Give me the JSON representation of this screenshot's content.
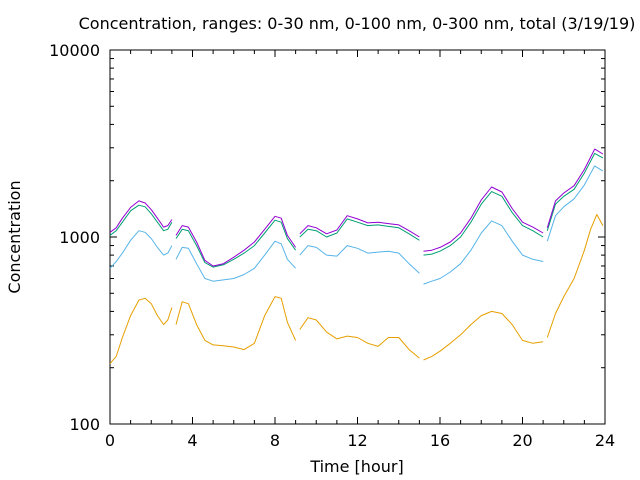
{
  "chart_data": {
    "type": "line",
    "title": "Concentration, ranges: 0-30 nm, 0-100 nm, 0-300 nm, total (3/19/19)",
    "xlabel": "Time [hour]",
    "ylabel": "Concentration",
    "xlim": [
      0,
      24
    ],
    "ylim": [
      100,
      10000
    ],
    "yscale": "log",
    "grid": false,
    "legend": "none",
    "x_ticks": [
      "0",
      "4",
      "8",
      "12",
      "16",
      "20",
      "24"
    ],
    "y_ticks": [
      "100",
      "1000",
      "10000"
    ],
    "series": [
      {
        "color": "#e69f00",
        "segments": [
          [
            [
              0,
              210
            ],
            [
              0.3,
              230
            ],
            [
              0.6,
              290
            ],
            [
              1.0,
              380
            ],
            [
              1.4,
              460
            ],
            [
              1.7,
              470
            ],
            [
              2.0,
              440
            ],
            [
              2.3,
              380
            ],
            [
              2.6,
              340
            ],
            [
              2.8,
              360
            ],
            [
              3.0,
              420
            ]
          ],
          [
            [
              3.2,
              340
            ],
            [
              3.5,
              450
            ],
            [
              3.8,
              440
            ],
            [
              4.2,
              340
            ],
            [
              4.6,
              280
            ],
            [
              5.0,
              265
            ],
            [
              5.5,
              262
            ],
            [
              6.0,
              258
            ],
            [
              6.5,
              250
            ],
            [
              7.0,
              270
            ],
            [
              7.5,
              380
            ],
            [
              8.0,
              480
            ],
            [
              8.3,
              470
            ],
            [
              8.6,
              350
            ],
            [
              9.0,
              280
            ]
          ],
          [
            [
              9.2,
              320
            ],
            [
              9.6,
              370
            ],
            [
              10.0,
              360
            ],
            [
              10.5,
              310
            ],
            [
              11.0,
              285
            ],
            [
              11.5,
              295
            ],
            [
              12.0,
              290
            ],
            [
              12.5,
              270
            ],
            [
              13.0,
              260
            ],
            [
              13.5,
              290
            ],
            [
              14.0,
              290
            ],
            [
              14.5,
              250
            ],
            [
              15.0,
              225
            ]
          ],
          [
            [
              15.2,
              220
            ],
            [
              15.6,
              230
            ],
            [
              16.0,
              245
            ],
            [
              16.5,
              270
            ],
            [
              17.0,
              300
            ],
            [
              17.5,
              340
            ],
            [
              18.0,
              380
            ],
            [
              18.5,
              400
            ],
            [
              19.0,
              390
            ],
            [
              19.5,
              340
            ],
            [
              20.0,
              280
            ],
            [
              20.5,
              270
            ],
            [
              21.0,
              275
            ]
          ],
          [
            [
              21.2,
              290
            ],
            [
              21.6,
              390
            ],
            [
              22.0,
              480
            ],
            [
              22.5,
              600
            ],
            [
              23.0,
              850
            ],
            [
              23.3,
              1100
            ],
            [
              23.6,
              1320
            ],
            [
              23.9,
              1150
            ]
          ]
        ]
      },
      {
        "color": "#56b4e9",
        "segments": [
          [
            [
              0,
              680
            ],
            [
              0.3,
              740
            ],
            [
              0.6,
              820
            ],
            [
              1.0,
              960
            ],
            [
              1.4,
              1080
            ],
            [
              1.7,
              1060
            ],
            [
              2.0,
              980
            ],
            [
              2.3,
              880
            ],
            [
              2.6,
              800
            ],
            [
              2.8,
              820
            ],
            [
              3.0,
              900
            ]
          ],
          [
            [
              3.2,
              760
            ],
            [
              3.5,
              880
            ],
            [
              3.8,
              870
            ],
            [
              4.2,
              720
            ],
            [
              4.6,
              600
            ],
            [
              5.0,
              580
            ],
            [
              5.5,
              590
            ],
            [
              6.0,
              600
            ],
            [
              6.5,
              630
            ],
            [
              7.0,
              680
            ],
            [
              7.5,
              800
            ],
            [
              8.0,
              950
            ],
            [
              8.3,
              920
            ],
            [
              8.6,
              760
            ],
            [
              9.0,
              680
            ]
          ],
          [
            [
              9.2,
              800
            ],
            [
              9.6,
              900
            ],
            [
              10.0,
              880
            ],
            [
              10.5,
              800
            ],
            [
              11.0,
              790
            ],
            [
              11.5,
              900
            ],
            [
              12.0,
              870
            ],
            [
              12.5,
              820
            ],
            [
              13.0,
              830
            ],
            [
              13.5,
              840
            ],
            [
              14.0,
              820
            ],
            [
              14.5,
              720
            ],
            [
              15.0,
              640
            ]
          ],
          [
            [
              15.2,
              560
            ],
            [
              15.6,
              580
            ],
            [
              16.0,
              600
            ],
            [
              16.5,
              650
            ],
            [
              17.0,
              720
            ],
            [
              17.5,
              850
            ],
            [
              18.0,
              1050
            ],
            [
              18.5,
              1220
            ],
            [
              19.0,
              1150
            ],
            [
              19.5,
              950
            ],
            [
              20.0,
              800
            ],
            [
              20.5,
              760
            ],
            [
              21.0,
              740
            ]
          ],
          [
            [
              21.2,
              950
            ],
            [
              21.6,
              1300
            ],
            [
              22.0,
              1450
            ],
            [
              22.5,
              1600
            ],
            [
              23.0,
              1900
            ],
            [
              23.5,
              2400
            ],
            [
              23.9,
              2250
            ]
          ]
        ]
      },
      {
        "color": "#009e73",
        "segments": [
          [
            [
              0,
              1020
            ],
            [
              0.3,
              1080
            ],
            [
              0.6,
              1200
            ],
            [
              1.0,
              1380
            ],
            [
              1.4,
              1480
            ],
            [
              1.7,
              1450
            ],
            [
              2.0,
              1330
            ],
            [
              2.3,
              1200
            ],
            [
              2.6,
              1080
            ],
            [
              2.8,
              1100
            ],
            [
              3.0,
              1200
            ]
          ],
          [
            [
              3.2,
              980
            ],
            [
              3.5,
              1100
            ],
            [
              3.8,
              1080
            ],
            [
              4.2,
              900
            ],
            [
              4.6,
              730
            ],
            [
              5.0,
              690
            ],
            [
              5.5,
              710
            ],
            [
              6.0,
              760
            ],
            [
              6.5,
              820
            ],
            [
              7.0,
              900
            ],
            [
              7.5,
              1050
            ],
            [
              8.0,
              1230
            ],
            [
              8.3,
              1200
            ],
            [
              8.6,
              980
            ],
            [
              9.0,
              850
            ]
          ],
          [
            [
              9.2,
              1000
            ],
            [
              9.6,
              1100
            ],
            [
              10.0,
              1080
            ],
            [
              10.5,
              1000
            ],
            [
              11.0,
              1050
            ],
            [
              11.5,
              1250
            ],
            [
              12.0,
              1200
            ],
            [
              12.5,
              1150
            ],
            [
              13.0,
              1160
            ],
            [
              13.5,
              1140
            ],
            [
              14.0,
              1120
            ],
            [
              14.5,
              1040
            ],
            [
              15.0,
              960
            ]
          ],
          [
            [
              15.2,
              800
            ],
            [
              15.6,
              810
            ],
            [
              16.0,
              840
            ],
            [
              16.5,
              900
            ],
            [
              17.0,
              1000
            ],
            [
              17.5,
              1200
            ],
            [
              18.0,
              1500
            ],
            [
              18.5,
              1750
            ],
            [
              19.0,
              1650
            ],
            [
              19.5,
              1350
            ],
            [
              20.0,
              1150
            ],
            [
              20.5,
              1080
            ],
            [
              21.0,
              1000
            ]
          ],
          [
            [
              21.2,
              1080
            ],
            [
              21.6,
              1500
            ],
            [
              22.0,
              1650
            ],
            [
              22.5,
              1800
            ],
            [
              23.0,
              2200
            ],
            [
              23.5,
              2800
            ],
            [
              23.9,
              2650
            ]
          ]
        ]
      },
      {
        "color": "#9400d3",
        "segments": [
          [
            [
              0,
              1060
            ],
            [
              0.3,
              1120
            ],
            [
              0.6,
              1260
            ],
            [
              1.0,
              1440
            ],
            [
              1.4,
              1560
            ],
            [
              1.7,
              1520
            ],
            [
              2.0,
              1400
            ],
            [
              2.3,
              1260
            ],
            [
              2.6,
              1130
            ],
            [
              2.8,
              1150
            ],
            [
              3.0,
              1240
            ]
          ],
          [
            [
              3.2,
              1020
            ],
            [
              3.5,
              1150
            ],
            [
              3.8,
              1130
            ],
            [
              4.2,
              940
            ],
            [
              4.6,
              750
            ],
            [
              5.0,
              700
            ],
            [
              5.5,
              720
            ],
            [
              6.0,
              780
            ],
            [
              6.5,
              850
            ],
            [
              7.0,
              940
            ],
            [
              7.5,
              1100
            ],
            [
              8.0,
              1290
            ],
            [
              8.3,
              1260
            ],
            [
              8.6,
              1020
            ],
            [
              9.0,
              880
            ]
          ],
          [
            [
              9.2,
              1040
            ],
            [
              9.6,
              1150
            ],
            [
              10.0,
              1120
            ],
            [
              10.5,
              1040
            ],
            [
              11.0,
              1090
            ],
            [
              11.5,
              1300
            ],
            [
              12.0,
              1250
            ],
            [
              12.5,
              1190
            ],
            [
              13.0,
              1200
            ],
            [
              13.5,
              1180
            ],
            [
              14.0,
              1160
            ],
            [
              14.5,
              1080
            ],
            [
              15.0,
              1000
            ]
          ],
          [
            [
              15.2,
              840
            ],
            [
              15.6,
              850
            ],
            [
              16.0,
              880
            ],
            [
              16.5,
              940
            ],
            [
              17.0,
              1050
            ],
            [
              17.5,
              1260
            ],
            [
              18.0,
              1580
            ],
            [
              18.5,
              1850
            ],
            [
              19.0,
              1740
            ],
            [
              19.5,
              1420
            ],
            [
              20.0,
              1200
            ],
            [
              20.5,
              1130
            ],
            [
              21.0,
              1050
            ]
          ],
          [
            [
              21.2,
              1120
            ],
            [
              21.6,
              1560
            ],
            [
              22.0,
              1720
            ],
            [
              22.5,
              1880
            ],
            [
              23.0,
              2300
            ],
            [
              23.5,
              2950
            ],
            [
              23.9,
              2780
            ]
          ]
        ]
      }
    ]
  }
}
